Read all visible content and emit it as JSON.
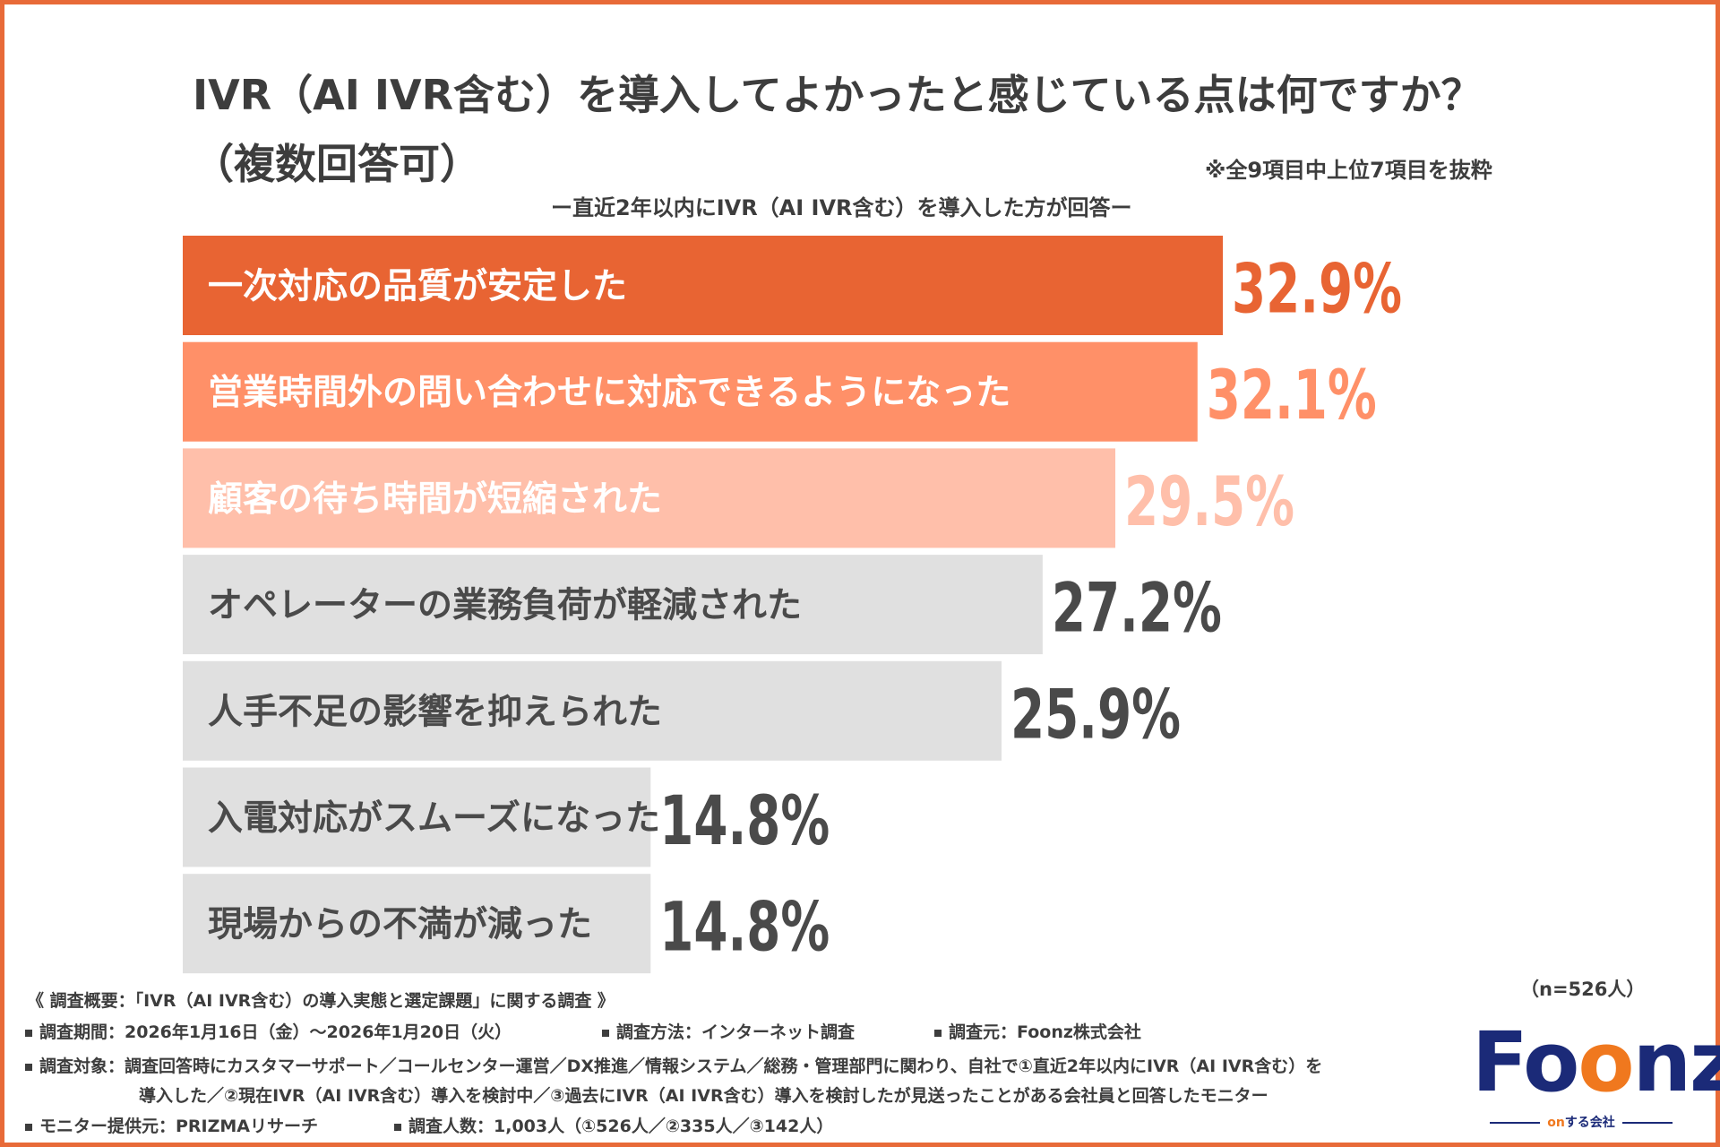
{
  "chart_data": {
    "type": "bar",
    "orientation": "horizontal",
    "title": "IVR（AI IVR含む）を導入してよかったと感じている点は何ですか？",
    "title_line2": "（複数回答可）",
    "subtitle": "ー直近2年以内にIVR（AI IVR含む）を導入した方が回答ー",
    "note": "※全9項目中上位7項目を抜粋",
    "categories": [
      "一次対応の品質が安定した",
      "営業時間外の問い合わせに対応できるようになった",
      "顧客の待ち時間が短縮された",
      "オペレーターの業務負荷が軽減された",
      "人手不足の影響を抑えられた",
      "入電対応がスムーズになった",
      "現場からの不満が減った"
    ],
    "values": [
      32.9,
      32.1,
      29.5,
      27.2,
      25.9,
      14.8,
      14.8
    ],
    "value_labels": [
      "32.9%",
      "32.1%",
      "29.5%",
      "27.2%",
      "25.9%",
      "14.8%",
      "14.8%"
    ],
    "bar_colors": [
      "#e86433",
      "#ff9068",
      "#ffbfaa",
      "#e0e0e0",
      "#e0e0e0",
      "#e0e0e0",
      "#e0e0e0"
    ],
    "label_colors": [
      "#ffffff",
      "#ffffff",
      "#ffffff",
      "#4a4a4a",
      "#4a4a4a",
      "#4a4a4a",
      "#4a4a4a"
    ],
    "value_colors": [
      "#e86433",
      "#ff9068",
      "#ffbfaa",
      "#4a4a4a",
      "#4a4a4a",
      "#4a4a4a",
      "#4a4a4a"
    ],
    "xlim": [
      0,
      32.9
    ],
    "sample_size": "（n=526人）"
  },
  "survey": {
    "heading": "《 調査概要：「IVR（AI IVR含む）の導入実態と選定課題」に関する調査 》",
    "period": "調査期間：2026年1月16日（金）〜2026年1月20日（火）",
    "method": "調査方法：インターネット調査",
    "organizer": "調査元：Foonz株式会社",
    "target_line1": "調査対象：調査回答時にカスタマーサポート／コールセンター運営／DX推進／情報システム／総務・管理部門に関わり、自社で①直近2年以内にIVR（AI IVR含む）を",
    "target_line2": "導入した／②現在IVR（AI IVR含む）導入を検討中／③過去にIVR（AI IVR含む）導入を検討したが見送ったことがある会社員と回答したモニター",
    "provider": "モニター提供元：PRIZMAリサーチ",
    "respondents": "調査人数：1,003人（①526人／②335人／③142人）"
  },
  "logo": {
    "wordmark_f": "F",
    "wordmark_o1": "o",
    "wordmark_o2": "o",
    "wordmark_rest": "nz",
    "tagline_on": "on",
    "tagline_rest": "する会社",
    "brand_color": "#1b2a78",
    "accent_color": "#f0781e"
  },
  "colors": {
    "frame": "#e86a38",
    "text": "#3d3d3d"
  }
}
